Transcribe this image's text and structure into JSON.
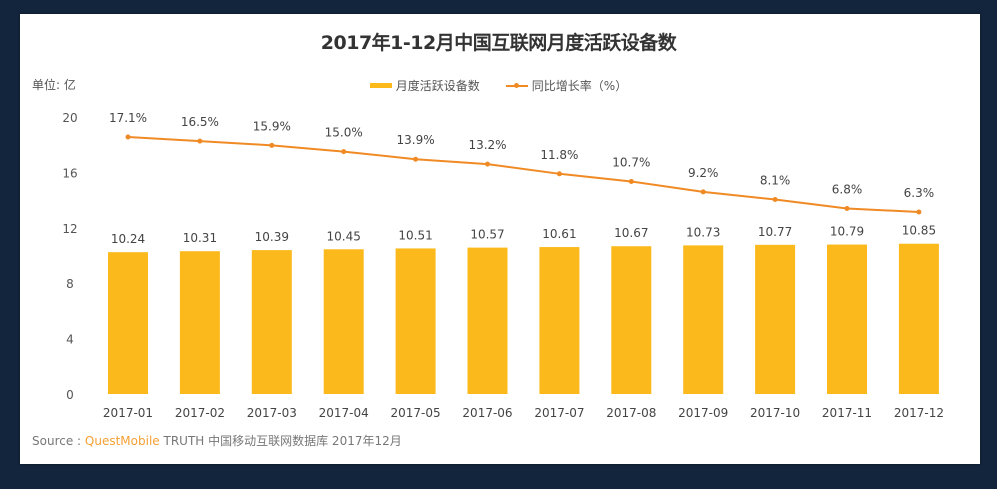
{
  "title": "2017年1-12月中国互联网月度活跃设备数",
  "unit_label": "单位: 亿",
  "legend": {
    "bar_label": "月度活跃设备数",
    "line_label": "同比增长率（%）"
  },
  "source": {
    "prefix": "Source :",
    "brand": "QuestMobile",
    "rest": "TRUTH 中国移动互联网数据库 2017年12月"
  },
  "colors": {
    "background": "#13253d",
    "bar": "#fbb91b",
    "line": "#f08a24",
    "text": "#555555"
  },
  "chart_data": {
    "type": "bar",
    "title": "2017年1-12月中国互联网月度活跃设备数",
    "xlabel": "",
    "ylabel": "单位: 亿",
    "ylim": [
      0,
      20
    ],
    "yticks": [
      0,
      4,
      8,
      12,
      16,
      20
    ],
    "grid": false,
    "legend_position": "top",
    "categories": [
      "2017-01",
      "2017-02",
      "2017-03",
      "2017-04",
      "2017-05",
      "2017-06",
      "2017-07",
      "2017-08",
      "2017-09",
      "2017-10",
      "2017-11",
      "2017-12"
    ],
    "series": [
      {
        "name": "月度活跃设备数",
        "type": "bar",
        "values": [
          10.24,
          10.31,
          10.39,
          10.45,
          10.51,
          10.57,
          10.61,
          10.67,
          10.73,
          10.77,
          10.79,
          10.85
        ],
        "labels": [
          "10.24",
          "10.31",
          "10.39",
          "10.45",
          "10.51",
          "10.57",
          "10.61",
          "10.67",
          "10.73",
          "10.77",
          "10.79",
          "10.85"
        ]
      },
      {
        "name": "同比增长率（%）",
        "type": "line",
        "axis": "secondary (hidden)",
        "values": [
          17.1,
          16.5,
          15.9,
          15.0,
          13.9,
          13.2,
          11.8,
          10.7,
          9.2,
          8.1,
          6.8,
          6.3
        ],
        "labels": [
          "17.1%",
          "16.5%",
          "15.9%",
          "15.0%",
          "13.9%",
          "13.2%",
          "11.8%",
          "10.7%",
          "9.2%",
          "8.1%",
          "6.8%",
          "6.3%"
        ]
      }
    ]
  }
}
